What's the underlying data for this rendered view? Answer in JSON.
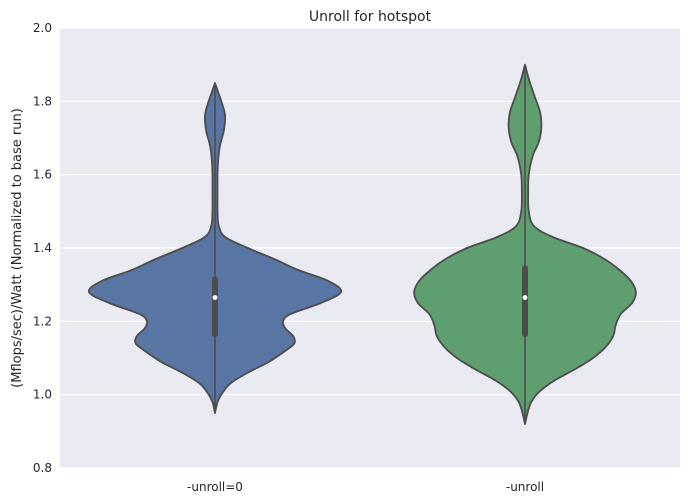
{
  "chart_data": {
    "type": "violin",
    "title": "Unroll for hotspot",
    "xlabel": "",
    "ylabel": "(Mflops/sec)/Watt (Normalized to base run)",
    "ylim": [
      0.8,
      2.0
    ],
    "yticks": [
      "0.8",
      "1.0",
      "1.2",
      "1.4",
      "1.6",
      "1.8",
      "2.0"
    ],
    "grid": true,
    "categories": [
      "-unroll=0",
      "-unroll"
    ],
    "colors": [
      "#5875a4",
      "#5f9e6e"
    ],
    "series": [
      {
        "category": "-unroll=0",
        "min": 0.95,
        "max": 1.85,
        "median": 1.265,
        "q1": 1.165,
        "q3": 1.315,
        "density": [
          [
            0.95,
            0.0
          ],
          [
            0.98,
            0.02
          ],
          [
            1.0,
            0.05
          ],
          [
            1.03,
            0.12
          ],
          [
            1.06,
            0.26
          ],
          [
            1.09,
            0.43
          ],
          [
            1.12,
            0.56
          ],
          [
            1.14,
            0.63
          ],
          [
            1.16,
            0.62
          ],
          [
            1.18,
            0.56
          ],
          [
            1.2,
            0.54
          ],
          [
            1.22,
            0.6
          ],
          [
            1.25,
            0.84
          ],
          [
            1.28,
            1.0
          ],
          [
            1.31,
            0.9
          ],
          [
            1.34,
            0.66
          ],
          [
            1.37,
            0.47
          ],
          [
            1.4,
            0.26
          ],
          [
            1.43,
            0.08
          ],
          [
            1.46,
            0.03
          ],
          [
            1.5,
            0.02
          ],
          [
            1.55,
            0.02
          ],
          [
            1.6,
            0.02
          ],
          [
            1.64,
            0.025
          ],
          [
            1.68,
            0.04
          ],
          [
            1.72,
            0.07
          ],
          [
            1.76,
            0.08
          ],
          [
            1.79,
            0.06
          ],
          [
            1.82,
            0.03
          ],
          [
            1.85,
            0.0
          ]
        ]
      },
      {
        "category": "-unroll",
        "min": 0.92,
        "max": 1.9,
        "median": 1.265,
        "q1": 1.165,
        "q3": 1.345,
        "density": [
          [
            0.92,
            0.0
          ],
          [
            0.95,
            0.02
          ],
          [
            0.98,
            0.05
          ],
          [
            1.01,
            0.12
          ],
          [
            1.04,
            0.24
          ],
          [
            1.07,
            0.4
          ],
          [
            1.1,
            0.54
          ],
          [
            1.13,
            0.64
          ],
          [
            1.16,
            0.7
          ],
          [
            1.19,
            0.72
          ],
          [
            1.22,
            0.76
          ],
          [
            1.25,
            0.85
          ],
          [
            1.28,
            0.88
          ],
          [
            1.31,
            0.84
          ],
          [
            1.34,
            0.75
          ],
          [
            1.37,
            0.63
          ],
          [
            1.4,
            0.46
          ],
          [
            1.43,
            0.22
          ],
          [
            1.46,
            0.07
          ],
          [
            1.5,
            0.03
          ],
          [
            1.55,
            0.025
          ],
          [
            1.6,
            0.03
          ],
          [
            1.65,
            0.06
          ],
          [
            1.69,
            0.11
          ],
          [
            1.73,
            0.13
          ],
          [
            1.77,
            0.12
          ],
          [
            1.81,
            0.08
          ],
          [
            1.85,
            0.04
          ],
          [
            1.88,
            0.015
          ],
          [
            1.9,
            0.0
          ]
        ]
      }
    ]
  }
}
